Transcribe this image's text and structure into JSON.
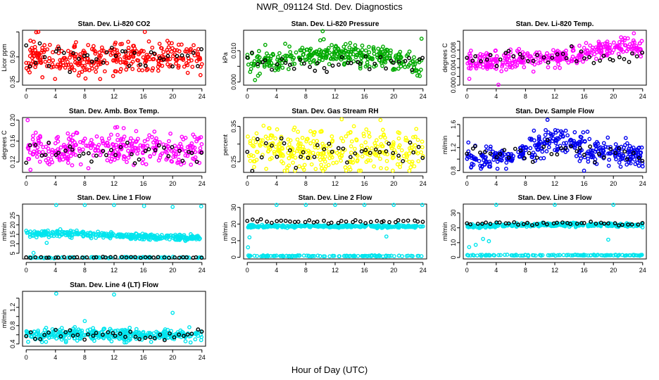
{
  "figure": {
    "title": "NWR_091124 Std. Dev. Diagnostics",
    "xlabel": "Hour of Day (UTC)"
  },
  "chart_data": [
    {
      "type": "scatter",
      "title": "Stan. Dev. Li-820 CO2",
      "ylabel": "Licor ppm",
      "xlim": [
        -0.5,
        24.5
      ],
      "ylim": [
        0.33,
        0.66
      ],
      "xticks": [
        0,
        4,
        8,
        12,
        16,
        20,
        24
      ],
      "yticks": [
        0.35,
        0.5,
        0.65
      ],
      "ytick_labels": [
        "0.35",
        "0.50",
        ""
      ],
      "color": "#ff0000",
      "gen": {
        "n": 330,
        "mean": [
          0.5,
          0.49,
          0.5,
          0.49,
          0.5,
          0.49,
          0.48,
          0.5,
          0.49
        ],
        "spread": 0.05,
        "min": 0.36,
        "max": 0.65,
        "seed": 11
      },
      "black": {
        "n": 38,
        "mean": 0.5,
        "spread": 0.05,
        "seed": 12
      },
      "outliers": [
        {
          "x": 16.2,
          "y": 0.65
        },
        {
          "x": 8.1,
          "y": 0.37
        }
      ]
    },
    {
      "type": "scatter",
      "title": "Stan. Dev. Li-820 Pressure",
      "ylabel": "kPa",
      "xlim": [
        -0.5,
        24.5
      ],
      "ylim": [
        -0.001,
        0.0165
      ],
      "xticks": [
        0,
        4,
        8,
        12,
        16,
        20,
        24
      ],
      "yticks": [
        0.0,
        0.005,
        0.01
      ],
      "ytick_labels": [
        "0.000",
        "",
        "0.010"
      ],
      "color": "#00aa00",
      "gen": {
        "n": 330,
        "mean": [
          0.006,
          0.0065,
          0.0072,
          0.0085,
          0.0095,
          0.009,
          0.008,
          0.0068,
          0.0045
        ],
        "spread": 0.0018,
        "min": 0.0,
        "max": 0.016,
        "seed": 21
      },
      "black": {
        "n": 38,
        "mean": 0.006,
        "spread": 0.0015,
        "seed": 22
      },
      "outliers": [
        {
          "x": 10.3,
          "y": 0.0162
        },
        {
          "x": 23.8,
          "y": 0.0138
        }
      ]
    },
    {
      "type": "scatter",
      "title": "Stan. Dev. Li-820 Temp.",
      "ylabel": "degrees C",
      "xlim": [
        -0.5,
        24.5
      ],
      "ylim": [
        0.0,
        0.0125
      ],
      "xticks": [
        0,
        4,
        8,
        12,
        16,
        20,
        24
      ],
      "yticks": [
        0.0,
        0.002,
        0.004,
        0.006,
        0.008,
        0.01
      ],
      "ytick_labels": [
        "0.000",
        "",
        "0.004",
        "",
        "0.008",
        ""
      ],
      "color": "#ff00ff",
      "gen": {
        "n": 330,
        "mean": [
          0.0052,
          0.0054,
          0.0058,
          0.006,
          0.0063,
          0.0068,
          0.0075,
          0.009,
          0.0085
        ],
        "spread": 0.0011,
        "min": 0.0005,
        "max": 0.0122,
        "seed": 31
      },
      "black": {
        "n": 38,
        "mean": 0.0065,
        "spread": 0.0012,
        "seed": 32
      },
      "outliers": [
        {
          "x": 4.3,
          "y": 0.0001
        },
        {
          "x": 22.8,
          "y": 0.0118
        }
      ]
    },
    {
      "type": "scatter",
      "title": "Stan. Dev. Amb. Box Temp.",
      "ylabel": "degrees C",
      "xlim": [
        -0.5,
        24.5
      ],
      "ylim": [
        0.1,
        0.205
      ],
      "xticks": [
        0,
        4,
        8,
        12,
        16,
        20,
        24
      ],
      "yticks": [
        0.12,
        0.16,
        0.2
      ],
      "ytick_labels": [
        "0.12",
        "0.16",
        "0.20"
      ],
      "color": "#ff00ff",
      "gen": {
        "n": 320,
        "mean": [
          0.145,
          0.142,
          0.143,
          0.146,
          0.145,
          0.144,
          0.142,
          0.143,
          0.142
        ],
        "spread": 0.016,
        "min": 0.105,
        "max": 0.2,
        "seed": 41
      },
      "black": {
        "n": 38,
        "mean": 0.138,
        "spread": 0.01,
        "seed": 42
      },
      "outliers": [
        {
          "x": 0.2,
          "y": 0.2
        }
      ]
    },
    {
      "type": "scatter",
      "title": "Stan. Dev. Gas Stream RH",
      "ylabel": "percent",
      "xlim": [
        -0.5,
        24.5
      ],
      "ylim": [
        0.22,
        0.375
      ],
      "xticks": [
        0,
        4,
        8,
        12,
        16,
        20,
        24
      ],
      "yticks": [
        0.25,
        0.3,
        0.35
      ],
      "ytick_labels": [
        "0.25",
        "",
        "0.35"
      ],
      "color": "#ffff00",
      "gen": {
        "n": 320,
        "mean": [
          0.28,
          0.285,
          0.285,
          0.28,
          0.28,
          0.285,
          0.285,
          0.28,
          0.285
        ],
        "spread": 0.03,
        "min": 0.225,
        "max": 0.37,
        "seed": 51
      },
      "black": {
        "n": 38,
        "mean": 0.28,
        "spread": 0.022,
        "seed": 52
      },
      "outliers": []
    },
    {
      "type": "scatter",
      "title": "Stan. Dev. Sample Flow",
      "ylabel": "ml/min",
      "xlim": [
        -0.5,
        24.5
      ],
      "ylim": [
        0.77,
        1.72
      ],
      "xticks": [
        0,
        4,
        8,
        12,
        16,
        20,
        24
      ],
      "yticks": [
        0.8,
        1.0,
        1.2,
        1.4,
        1.6
      ],
      "ytick_labels": [
        "0.8",
        "",
        "1.2",
        "",
        "1.6"
      ],
      "color": "#0000ee",
      "gen": {
        "n": 360,
        "mean": [
          1.0,
          1.0,
          1.05,
          1.2,
          1.35,
          1.25,
          1.15,
          1.12,
          1.05
        ],
        "spread": 0.11,
        "min": 0.8,
        "max": 1.7,
        "seed": 61
      },
      "black": {
        "n": 38,
        "mean": 1.1,
        "spread": 0.1,
        "seed": 62
      },
      "outliers": [
        {
          "x": 11.0,
          "y": 1.68
        }
      ]
    },
    {
      "type": "scatter",
      "title": "Stan. Dev. Line 1 Flow",
      "ylabel": "ml/min",
      "xlim": [
        -0.5,
        24.5
      ],
      "ylim": [
        2.0,
        31.0
      ],
      "xticks": [
        0,
        4,
        8,
        12,
        16,
        20,
        24
      ],
      "yticks": [
        5,
        10,
        15,
        20,
        25
      ],
      "ytick_labels": [
        "5",
        "10",
        "15",
        "20",
        "25"
      ],
      "color": "#00e5ee",
      "gen": {
        "n": 340,
        "mean": [
          15.5,
          15.5,
          15.3,
          15.0,
          14.5,
          14.0,
          13.6,
          13.3,
          13.0
        ],
        "spread": 0.8,
        "min": 11.5,
        "max": 18.0,
        "seed": 71
      },
      "band": {
        "n": 90,
        "y": 2.8,
        "spread": 0.15,
        "seed": 73
      },
      "black": {
        "n": 38,
        "mean": 2.8,
        "spread": 0.12,
        "seed": 72
      },
      "outliers": [
        {
          "x": 4.1,
          "y": 30.5
        },
        {
          "x": 8.0,
          "y": 30.5
        },
        {
          "x": 12.0,
          "y": 30.5
        },
        {
          "x": 16.1,
          "y": 30.0
        },
        {
          "x": 20.0,
          "y": 29.5
        },
        {
          "x": 23.9,
          "y": 29.8
        },
        {
          "x": 1.0,
          "y": 5.2
        },
        {
          "x": 2.8,
          "y": 10.5
        }
      ]
    },
    {
      "type": "scatter",
      "title": "Stan. Dev. Line 2 Flow",
      "ylabel": "ml/min",
      "xlim": [
        -0.5,
        24.5
      ],
      "ylim": [
        -1.0,
        32.0
      ],
      "xticks": [
        0,
        4,
        8,
        12,
        16,
        20,
        24
      ],
      "yticks": [
        0,
        10,
        20,
        30
      ],
      "ytick_labels": [
        "0",
        "10",
        "20",
        "30"
      ],
      "color": "#00e5ee",
      "gen": {
        "n": 330,
        "mean": [
          18.5,
          18.6,
          18.6,
          18.7,
          18.7,
          18.7,
          18.6,
          18.6,
          18.5
        ],
        "spread": 0.4,
        "min": 17.0,
        "max": 20.0,
        "seed": 81
      },
      "band": {
        "n": 120,
        "y": 0.8,
        "spread": 0.15,
        "seed": 83
      },
      "black": {
        "n": 38,
        "mean": 21.5,
        "spread": 0.5,
        "seed": 82
      },
      "outliers": [
        {
          "x": 4.0,
          "y": 31.5
        },
        {
          "x": 8.0,
          "y": 31.5
        },
        {
          "x": 12.0,
          "y": 31.5
        },
        {
          "x": 16.0,
          "y": 31.5
        },
        {
          "x": 20.0,
          "y": 31.5
        },
        {
          "x": 23.9,
          "y": 31.5
        },
        {
          "x": 0.1,
          "y": 6.0
        },
        {
          "x": 0.3,
          "y": 12.0
        },
        {
          "x": 19.0,
          "y": 12.5
        }
      ]
    },
    {
      "type": "scatter",
      "title": "Stan. Dev. Line 3 Flow",
      "ylabel": "ml/min",
      "xlim": [
        -0.5,
        24.5
      ],
      "ylim": [
        -1.0,
        36.0
      ],
      "xticks": [
        0,
        4,
        8,
        12,
        16,
        20,
        24
      ],
      "yticks": [
        0,
        10,
        20,
        30
      ],
      "ytick_labels": [
        "0",
        "10",
        "20",
        "30"
      ],
      "color": "#00e5ee",
      "gen": {
        "n": 330,
        "mean": [
          21.0,
          21.2,
          21.8,
          22.0,
          22.0,
          22.0,
          21.8,
          21.8,
          21.6
        ],
        "spread": 0.6,
        "min": 19.0,
        "max": 23.5,
        "seed": 91
      },
      "band": {
        "n": 120,
        "y": 1.5,
        "spread": 0.2,
        "seed": 93
      },
      "black": {
        "n": 38,
        "mean": 22.8,
        "spread": 0.6,
        "seed": 92
      },
      "outliers": [
        {
          "x": 4.0,
          "y": 35.5
        },
        {
          "x": 12.0,
          "y": 35.5
        },
        {
          "x": 20.0,
          "y": 35.5
        },
        {
          "x": 0.3,
          "y": 7.0
        },
        {
          "x": 1.2,
          "y": 8.5
        },
        {
          "x": 2.2,
          "y": 12.5
        },
        {
          "x": 3.0,
          "y": 11.0
        },
        {
          "x": 19.3,
          "y": 12.0
        }
      ]
    },
    {
      "type": "scatter",
      "title": "Stan. Dev. Line 4 (LT) Flow",
      "ylabel": "ml/min",
      "xlim": [
        -0.5,
        24.5
      ],
      "ylim": [
        0.35,
        1.55
      ],
      "xticks": [
        0,
        4,
        8,
        12,
        16,
        20,
        24
      ],
      "yticks": [
        0.4,
        0.6,
        0.8,
        1.0,
        1.2,
        1.4
      ],
      "ytick_labels": [
        "0.4",
        "",
        "0.8",
        "",
        "1.2",
        ""
      ],
      "color": "#00e5ee",
      "gen": {
        "n": 360,
        "mean": [
          0.6,
          0.6,
          0.6,
          0.61,
          0.6,
          0.6,
          0.6,
          0.6,
          0.6
        ],
        "spread": 0.065,
        "min": 0.4,
        "max": 0.92,
        "seed": 101
      },
      "black": {
        "n": 38,
        "mean": 0.6,
        "spread": 0.05,
        "seed": 102
      },
      "outliers": [
        {
          "x": 4.1,
          "y": 1.5
        },
        {
          "x": 12.0,
          "y": 1.48
        },
        {
          "x": 20.0,
          "y": 1.08
        },
        {
          "x": 8.0,
          "y": 0.9
        }
      ]
    }
  ]
}
